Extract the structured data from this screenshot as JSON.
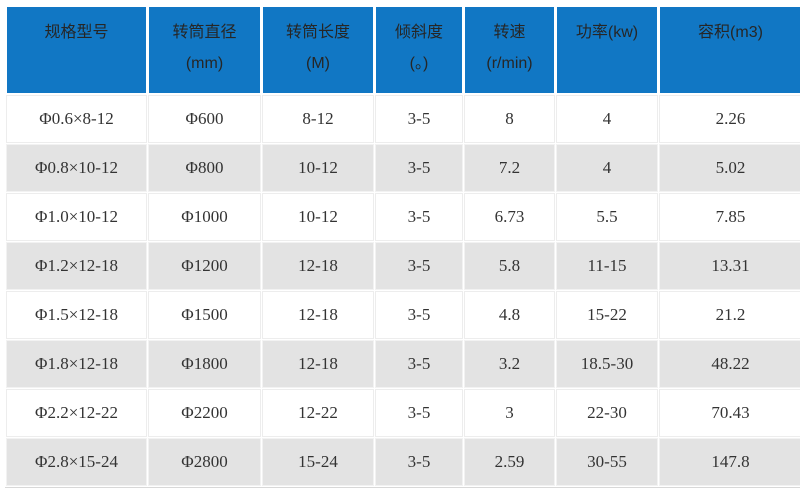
{
  "chart_data": {
    "type": "table",
    "title": "",
    "columns": [
      {
        "title": "规格型号",
        "sub": ""
      },
      {
        "title": "转筒直径",
        "sub": "(mm)"
      },
      {
        "title": "转筒长度",
        "sub": "(M)"
      },
      {
        "title": "倾斜度",
        "sub": "(。)"
      },
      {
        "title": "转速",
        "sub": "(r/min)"
      },
      {
        "title": "功率(kw)",
        "sub": ""
      },
      {
        "title": "容积(m3)",
        "sub": ""
      }
    ],
    "rows": [
      [
        "Φ0.6×8-12",
        "Φ600",
        "8-12",
        "3-5",
        "8",
        "4",
        "2.26"
      ],
      [
        "Φ0.8×10-12",
        "Φ800",
        "10-12",
        "3-5",
        "7.2",
        "4",
        "5.02"
      ],
      [
        "Φ1.0×10-12",
        "Φ1000",
        "10-12",
        "3-5",
        "6.73",
        "5.5",
        "7.85"
      ],
      [
        "Φ1.2×12-18",
        "Φ1200",
        "12-18",
        "3-5",
        "5.8",
        "11-15",
        "13.31"
      ],
      [
        "Φ1.5×12-18",
        "Φ1500",
        "12-18",
        "3-5",
        "4.8",
        "15-22",
        "21.2"
      ],
      [
        "Φ1.8×12-18",
        "Φ1800",
        "12-18",
        "3-5",
        "3.2",
        "18.5-30",
        "48.22"
      ],
      [
        "Φ2.2×12-22",
        "Φ2200",
        "12-22",
        "3-5",
        "3",
        "22-30",
        "70.43"
      ],
      [
        "Φ2.8×15-24",
        "Φ2800",
        "15-24",
        "3-5",
        "2.59",
        "30-55",
        "147.8"
      ]
    ]
  },
  "colors": {
    "header_bg": "#1177c4",
    "header_text": "#262626",
    "row_bg": "#ffffff",
    "row_alt_bg": "#e3e3e3",
    "cell_text": "#333333",
    "separator": "#ffffff",
    "bottom_border": "#d8d8d8"
  }
}
